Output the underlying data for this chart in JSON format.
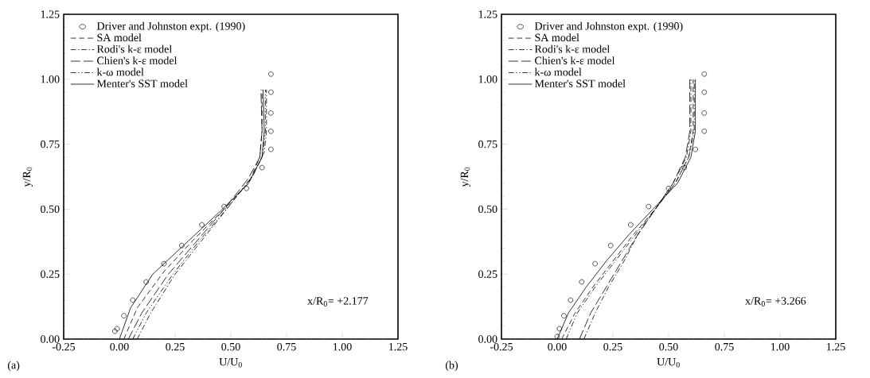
{
  "chart_data": [
    {
      "type": "line",
      "title": "(a)",
      "xlabel": "U/U$_{0}$",
      "ylabel": "y/R$_{0}$",
      "annotations": [
        "x/R$_{0}$= +2.177"
      ],
      "xlim": [
        -0.25,
        1.25
      ],
      "ylim": [
        0,
        1.25
      ],
      "xticks": [
        {
          "value": -0.25,
          "label": "-0.25"
        },
        {
          "value": 0,
          "label": "0.00"
        },
        {
          "value": 0.25,
          "label": "0.25"
        },
        {
          "value": 0.5,
          "label": "0.50"
        },
        {
          "value": 0.75,
          "label": "0.75"
        },
        {
          "value": 1,
          "label": "1.00"
        },
        {
          "value": 1.25,
          "label": "1.25"
        }
      ],
      "yticks": [
        {
          "value": 0,
          "label": "0.00"
        },
        {
          "value": 0.25,
          "label": "0.25"
        },
        {
          "value": 0.5,
          "label": "0.50"
        },
        {
          "value": 0.75,
          "label": "0.75"
        },
        {
          "value": 1,
          "label": "1.00"
        },
        {
          "value": 1.25,
          "label": "1.25"
        }
      ],
      "legend": "top left",
      "grid": false,
      "series": [
        {
          "name": "Driver and Johnston expt. (1990)",
          "type": "scatter",
          "marker": "circle",
          "color": "#000000",
          "x": [
            -0.02,
            -0.01,
            0.02,
            0.06,
            0.12,
            0.2,
            0.28,
            0.37,
            0.47,
            0.57,
            0.64,
            0.68,
            0.68,
            0.68,
            0.68,
            0.68
          ],
          "values": [
            0.03,
            0.04,
            0.09,
            0.15,
            0.22,
            0.29,
            0.36,
            0.44,
            0.51,
            0.58,
            0.66,
            0.73,
            0.8,
            0.87,
            0.95,
            1.02
          ]
        },
        {
          "name": "SA model",
          "type": "line",
          "line_style": "dashed",
          "color": "#000000",
          "x": [
            0.02,
            0.08,
            0.2,
            0.33,
            0.47,
            0.58,
            0.63,
            0.64,
            0.64
          ],
          "values": [
            0,
            0.12,
            0.26,
            0.38,
            0.5,
            0.6,
            0.7,
            0.8,
            0.96
          ]
        },
        {
          "name": "Rodi's k-ε model",
          "type": "line",
          "line_style": "dashdot",
          "color": "#000000",
          "x": [
            0.08,
            0.14,
            0.25,
            0.37,
            0.5,
            0.6,
            0.65,
            0.66,
            0.66
          ],
          "values": [
            0,
            0.1,
            0.25,
            0.38,
            0.52,
            0.63,
            0.72,
            0.8,
            0.96
          ]
        },
        {
          "name": "Chien's k-ε model",
          "type": "line",
          "line_style": "longdash",
          "color": "#000000",
          "x": [
            0.04,
            0.1,
            0.22,
            0.35,
            0.48,
            0.58,
            0.63,
            0.64,
            0.635
          ],
          "values": [
            0,
            0.1,
            0.25,
            0.38,
            0.51,
            0.62,
            0.7,
            0.8,
            0.96
          ]
        },
        {
          "name": "k-ω model",
          "type": "line",
          "line_style": "dashdotdot",
          "color": "#000000",
          "x": [
            0.06,
            0.12,
            0.24,
            0.36,
            0.49,
            0.59,
            0.64,
            0.655,
            0.655
          ],
          "values": [
            0,
            0.1,
            0.25,
            0.38,
            0.51,
            0.62,
            0.7,
            0.8,
            0.96
          ]
        },
        {
          "name": "Menter's SST model",
          "type": "line",
          "line_style": "solid",
          "color": "#000000",
          "x": [
            0.0,
            0.05,
            0.15,
            0.3,
            0.45,
            0.58,
            0.64,
            0.65,
            0.645
          ],
          "values": [
            0,
            0.12,
            0.25,
            0.37,
            0.49,
            0.6,
            0.7,
            0.8,
            0.96
          ]
        }
      ]
    },
    {
      "type": "line",
      "title": "(b)",
      "xlabel": "U/U$_{0}$",
      "ylabel": "y/R$_{0}$",
      "annotations": [
        "x/R$_{0}$= +3.266"
      ],
      "xlim": [
        -0.25,
        1.25
      ],
      "ylim": [
        0,
        1.25
      ],
      "xticks": [
        {
          "value": -0.25,
          "label": "-0.25"
        },
        {
          "value": 0,
          "label": "0.00"
        },
        {
          "value": 0.25,
          "label": "0.25"
        },
        {
          "value": 0.5,
          "label": "0.50"
        },
        {
          "value": 0.75,
          "label": "0.75"
        },
        {
          "value": 1,
          "label": "1.00"
        },
        {
          "value": 1.25,
          "label": "1.25"
        }
      ],
      "yticks": [
        {
          "value": 0,
          "label": "0.00"
        },
        {
          "value": 0.25,
          "label": "0.25"
        },
        {
          "value": 0.5,
          "label": "0.50"
        },
        {
          "value": 0.75,
          "label": "0.75"
        },
        {
          "value": 1,
          "label": "1.00"
        },
        {
          "value": 1.25,
          "label": "1.25"
        }
      ],
      "legend": "top left",
      "grid": false,
      "series": [
        {
          "name": "Driver and Johnston expt. (1990)",
          "type": "scatter",
          "marker": "circle",
          "color": "#000000",
          "x": [
            0.0,
            0.01,
            0.03,
            0.06,
            0.11,
            0.17,
            0.24,
            0.33,
            0.41,
            0.5,
            0.57,
            0.62,
            0.66,
            0.66,
            0.66,
            0.66
          ],
          "values": [
            0.01,
            0.04,
            0.09,
            0.15,
            0.22,
            0.29,
            0.36,
            0.44,
            0.51,
            0.58,
            0.66,
            0.73,
            0.8,
            0.87,
            0.95,
            1.02
          ]
        },
        {
          "name": "SA model",
          "type": "line",
          "line_style": "dashed",
          "color": "#000000",
          "x": [
            0.02,
            0.08,
            0.16,
            0.25,
            0.34,
            0.44,
            0.53,
            0.59,
            0.61,
            0.61
          ],
          "values": [
            0,
            0.1,
            0.2,
            0.3,
            0.4,
            0.5,
            0.6,
            0.7,
            0.8,
            1.0
          ]
        },
        {
          "name": "Rodi's k-ε model",
          "type": "line",
          "line_style": "dashdot",
          "color": "#000000",
          "x": [
            0.12,
            0.17,
            0.23,
            0.3,
            0.36,
            0.44,
            0.52,
            0.58,
            0.6,
            0.6
          ],
          "values": [
            0,
            0.1,
            0.2,
            0.3,
            0.4,
            0.5,
            0.6,
            0.7,
            0.8,
            1.0
          ]
        },
        {
          "name": "Chien's k-ε model",
          "type": "line",
          "line_style": "longdash",
          "color": "#000000",
          "x": [
            0.1,
            0.15,
            0.22,
            0.29,
            0.36,
            0.44,
            0.52,
            0.575,
            0.595,
            0.595
          ],
          "values": [
            0,
            0.1,
            0.2,
            0.3,
            0.4,
            0.5,
            0.6,
            0.7,
            0.8,
            1.0
          ]
        },
        {
          "name": "k-ω model",
          "type": "line",
          "line_style": "dashdotdot",
          "color": "#000000",
          "x": [
            0.04,
            0.09,
            0.17,
            0.26,
            0.35,
            0.44,
            0.53,
            0.59,
            0.615,
            0.615
          ],
          "values": [
            0,
            0.1,
            0.2,
            0.3,
            0.4,
            0.5,
            0.6,
            0.7,
            0.8,
            1.0
          ]
        },
        {
          "name": "Menter's SST model",
          "type": "line",
          "line_style": "solid",
          "color": "#000000",
          "x": [
            0.0,
            0.05,
            0.13,
            0.22,
            0.32,
            0.43,
            0.54,
            0.6,
            0.62,
            0.62
          ],
          "values": [
            0,
            0.1,
            0.2,
            0.3,
            0.4,
            0.5,
            0.6,
            0.7,
            0.8,
            1.0
          ]
        }
      ]
    }
  ]
}
